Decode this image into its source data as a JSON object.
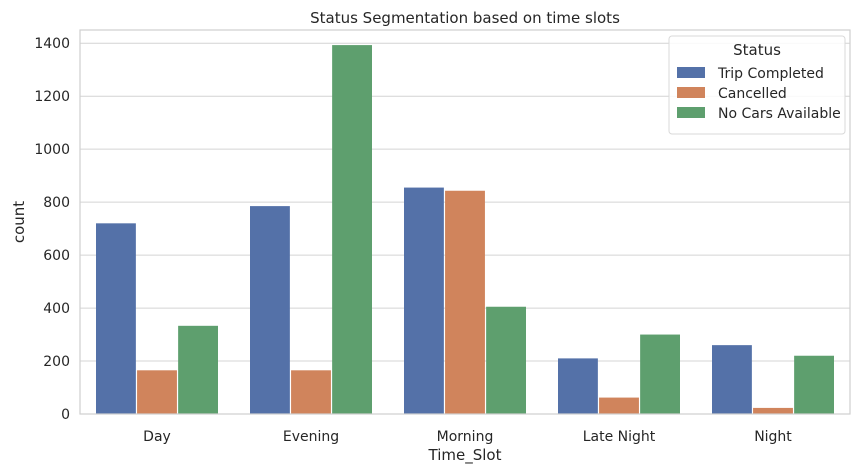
{
  "chart_data": {
    "type": "bar",
    "title": "Status Segmentation based on time slots",
    "xlabel": "Time_Slot",
    "ylabel": "count",
    "categories": [
      "Day",
      "Evening",
      "Morning",
      "Late Night",
      "Night"
    ],
    "ylim": [
      0,
      1450
    ],
    "yticks": [
      0,
      200,
      400,
      600,
      800,
      1000,
      1200,
      1400
    ],
    "grid": true,
    "legend": {
      "title": "Status",
      "placement": "top-right"
    },
    "series": [
      {
        "name": "Trip Completed",
        "color": "#5471a8",
        "values": [
          720,
          785,
          855,
          210,
          260
        ]
      },
      {
        "name": "Cancelled",
        "color": "#d0845c",
        "values": [
          165,
          165,
          843,
          62,
          23
        ]
      },
      {
        "name": "No Cars Available",
        "color": "#5e9f6e",
        "values": [
          333,
          1393,
          405,
          300,
          220
        ]
      }
    ]
  }
}
